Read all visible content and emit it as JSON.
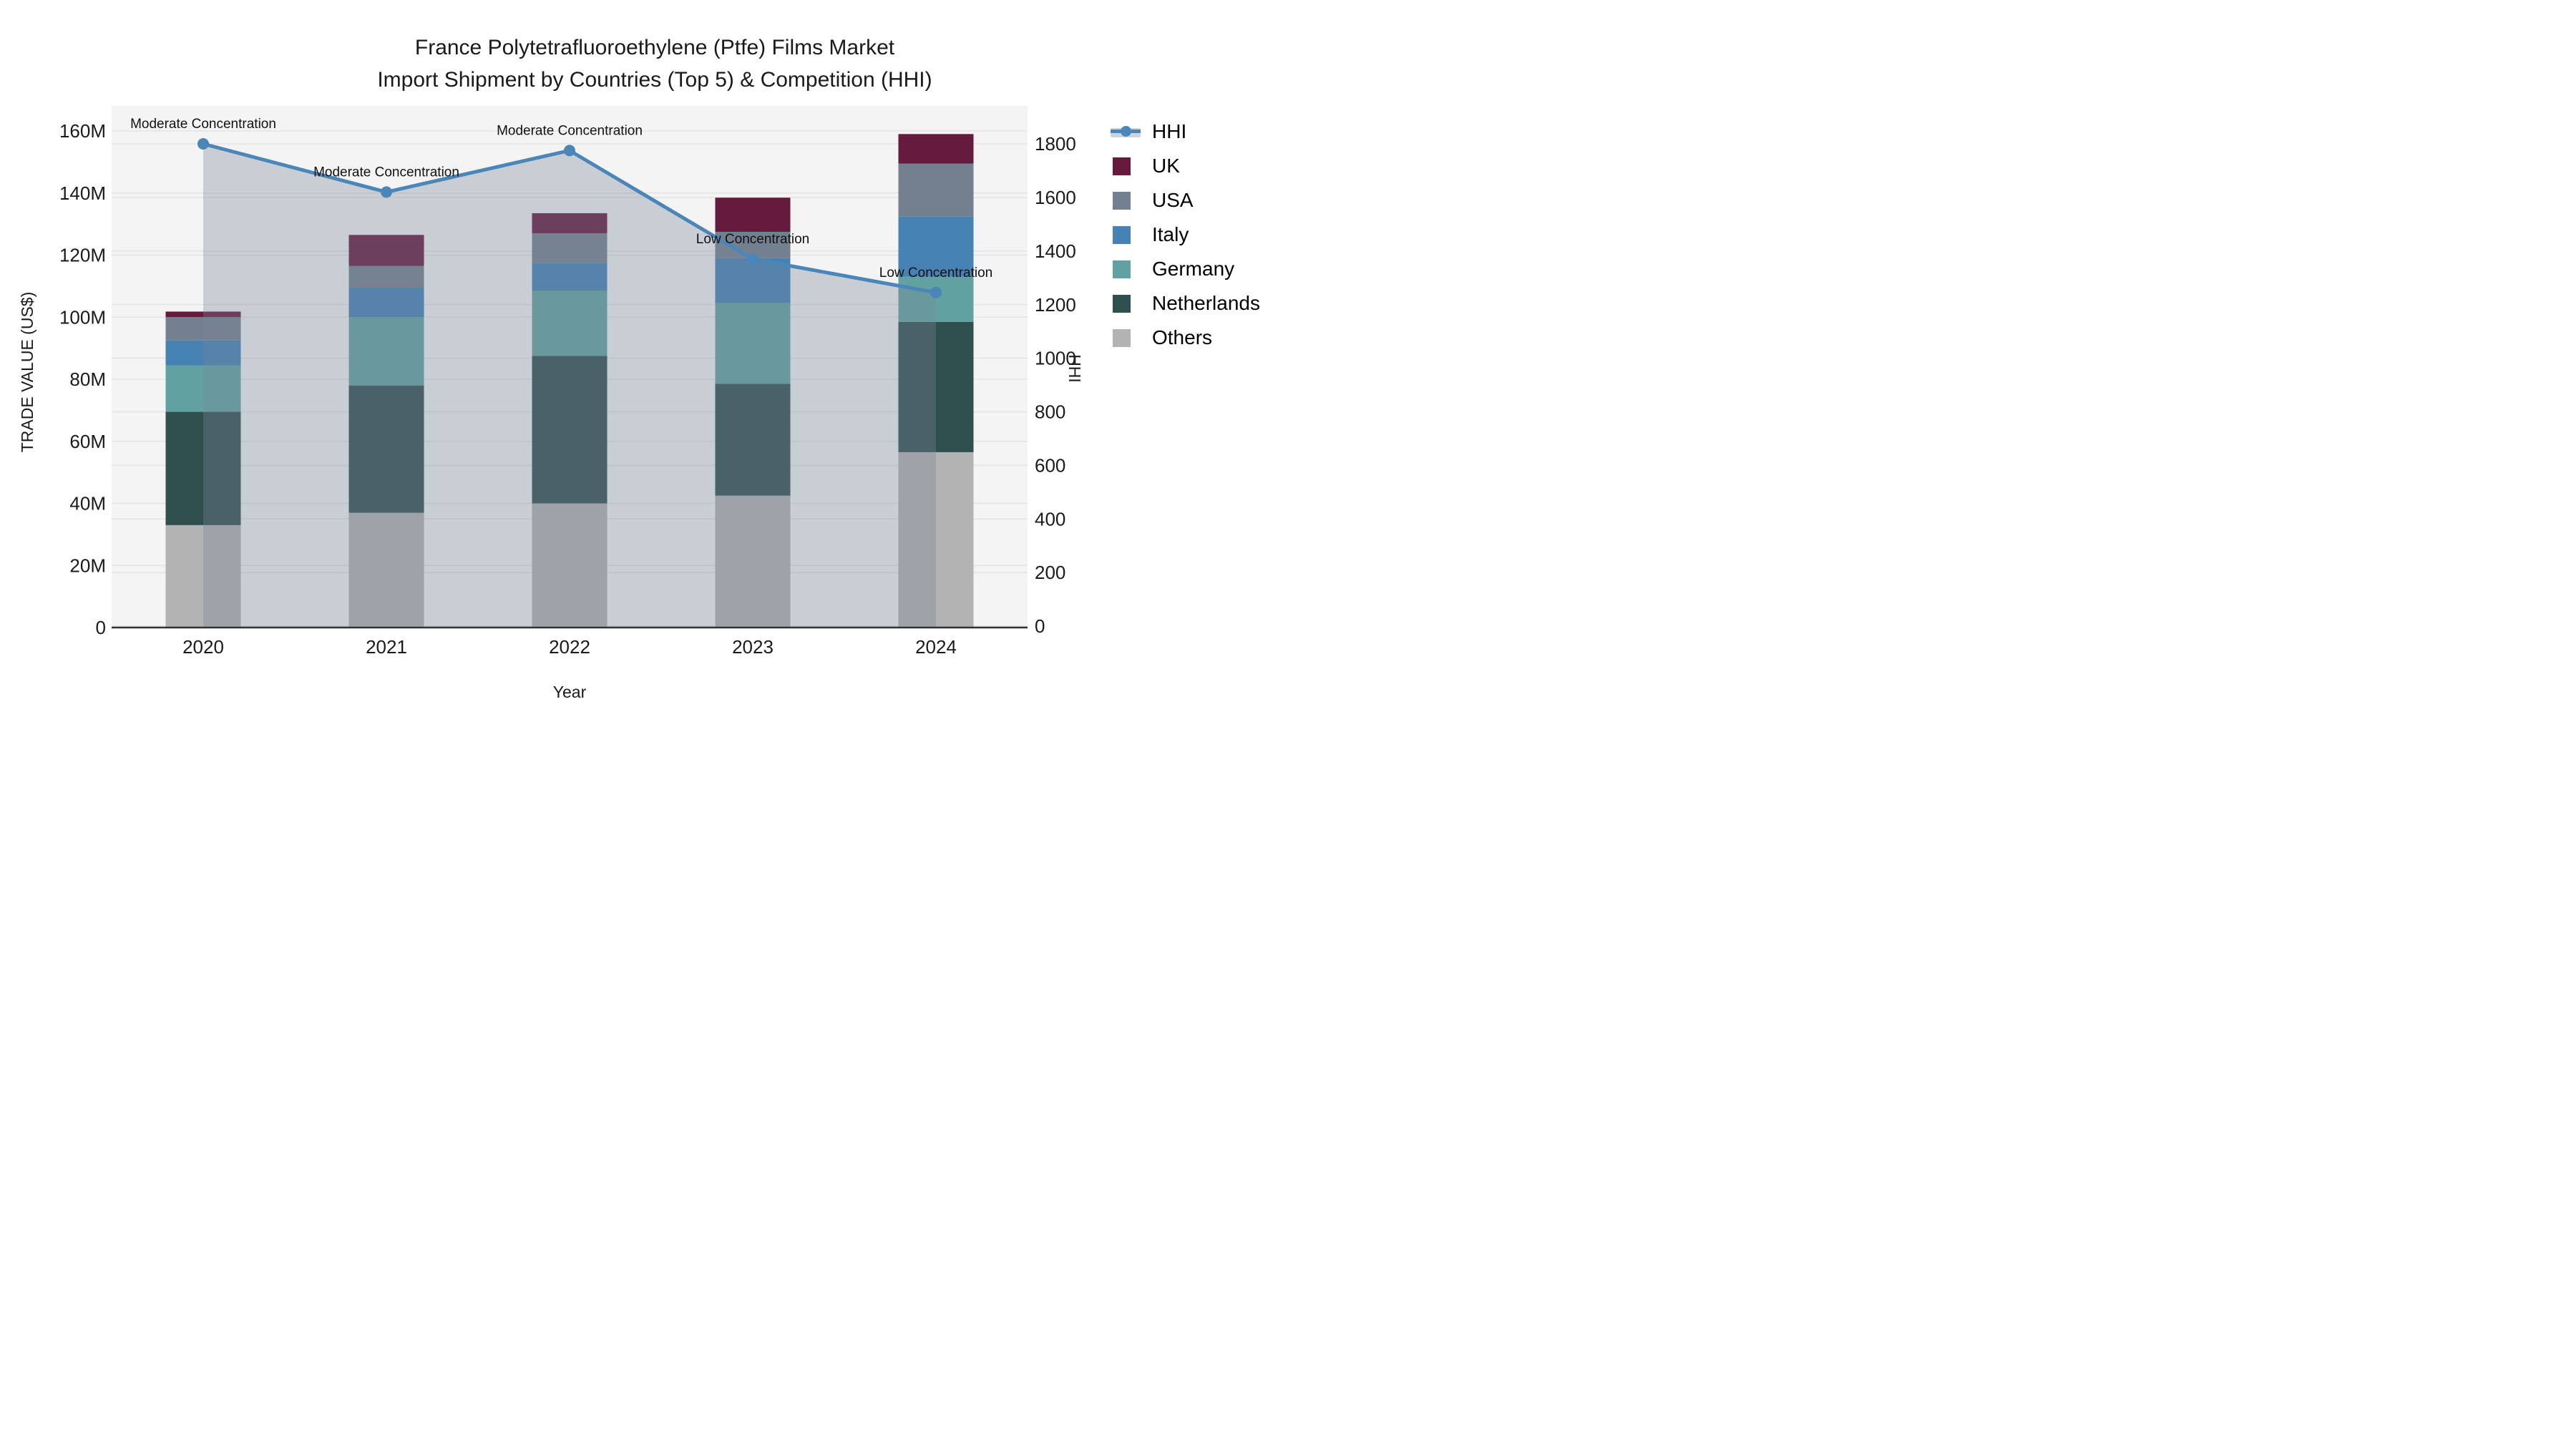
{
  "chart_data": {
    "type": "bar",
    "title_line1": "France Polytetrafluoroethylene (Ptfe) Films Market",
    "title_line2": "Import Shipment by Countries (Top 5) & Competition (HHI)",
    "xlabel": "Year",
    "ylabel_left": "TRADE VALUE (US$)",
    "ylabel_right": "HHI",
    "categories": [
      "2020",
      "2021",
      "2022",
      "2023",
      "2024"
    ],
    "series": [
      {
        "name": "Others",
        "color": "#b3b3b3",
        "values": [
          33,
          37,
          40,
          42.5,
          56.5
        ]
      },
      {
        "name": "Netherlands",
        "color": "#2f4f4f",
        "values": [
          36.5,
          41,
          47.5,
          36,
          42
        ]
      },
      {
        "name": "Germany",
        "color": "#62a1a1",
        "values": [
          15,
          22,
          21,
          26,
          14.5
        ]
      },
      {
        "name": "Italy",
        "color": "#4682b4",
        "values": [
          8,
          9.5,
          9,
          14.5,
          19.5
        ]
      },
      {
        "name": "USA",
        "color": "#72808f",
        "values": [
          7.5,
          7,
          9.5,
          8.5,
          17
        ]
      },
      {
        "name": "UK",
        "color": "#661a3d",
        "values": [
          1.8,
          10,
          6.5,
          11,
          9.5
        ]
      }
    ],
    "line_series": {
      "name": "HHI",
      "color": "#4a86b8",
      "area_fill": "rgba(119,136,153,0.35)",
      "values": [
        1800,
        1620,
        1775,
        1370,
        1245
      ]
    },
    "annotations": [
      "Moderate Concentration",
      "Moderate Concentration",
      "Moderate Concentration",
      "Low Concentration",
      "Low Concentration"
    ],
    "left_axis": {
      "tick_labels": [
        "0",
        "20M",
        "40M",
        "60M",
        "80M",
        "100M",
        "120M",
        "140M",
        "160M"
      ],
      "tick_values": [
        0,
        20,
        40,
        60,
        80,
        100,
        120,
        140,
        160
      ],
      "max": 160
    },
    "right_axis": {
      "tick_labels": [
        "0",
        "200",
        "400",
        "600",
        "800",
        "1000",
        "1200",
        "1400",
        "1600",
        "1800"
      ],
      "tick_values": [
        0,
        200,
        400,
        600,
        800,
        1000,
        1200,
        1400,
        1600,
        1800
      ],
      "max": 1800
    },
    "legend": [
      {
        "label": "HHI",
        "type": "line",
        "color": "#4a86b8",
        "band": "#ccd5de"
      },
      {
        "label": "UK",
        "type": "patch",
        "color": "#661a3d"
      },
      {
        "label": "USA",
        "type": "patch",
        "color": "#72808f"
      },
      {
        "label": "Italy",
        "type": "patch",
        "color": "#4682b4"
      },
      {
        "label": "Germany",
        "type": "patch",
        "color": "#62a1a1"
      },
      {
        "label": "Netherlands",
        "type": "patch",
        "color": "#2f4f4f"
      },
      {
        "label": "Others",
        "type": "patch",
        "color": "#b3b3b3"
      }
    ],
    "style": {
      "plot_bg": "#f4f4f4",
      "grid_color": "#e3e3e3",
      "spine_color": "#333333",
      "text_color": "#1a1a1a"
    }
  }
}
